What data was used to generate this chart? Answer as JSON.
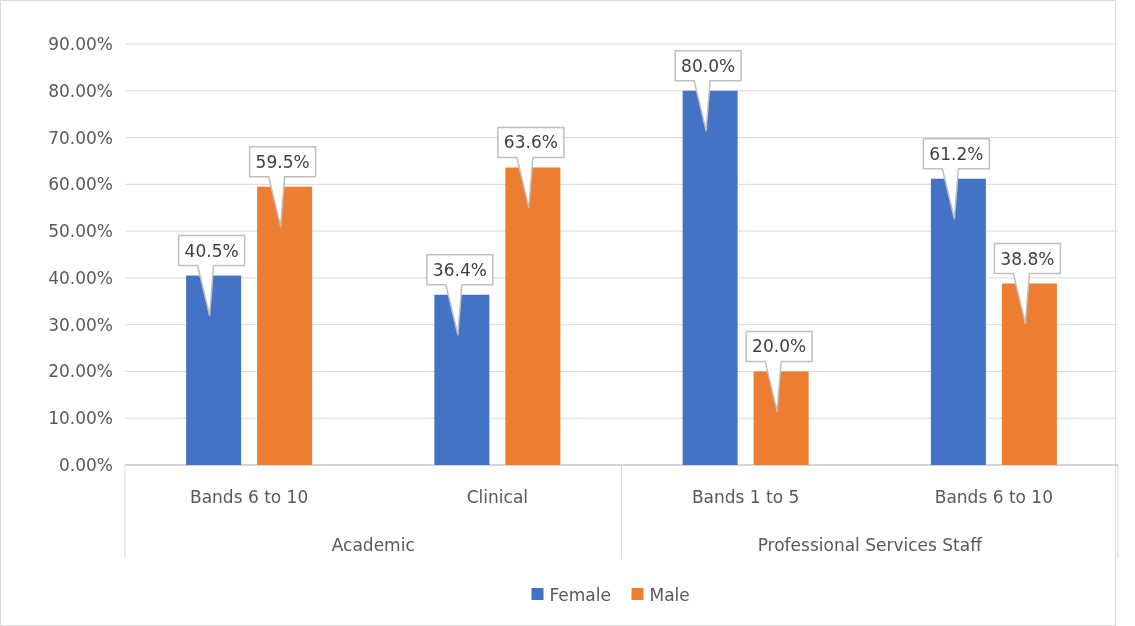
{
  "chart_data": {
    "type": "bar",
    "categories": [
      "Bands 6 to 10",
      "Clinical",
      "Bands 1 to 5",
      "Bands 6 to 10"
    ],
    "annotations": [
      "Academic",
      "Professional Services Staff"
    ],
    "series": [
      {
        "name": "Female",
        "color": "#4472c4",
        "values": [
          40.5,
          36.4,
          80.0,
          61.2
        ],
        "value_labels": [
          "40.5%",
          "36.4%",
          "80.0%",
          "61.2%"
        ]
      },
      {
        "name": "Male",
        "color": "#ed7d31",
        "values": [
          59.5,
          63.6,
          20.0,
          38.8
        ],
        "value_labels": [
          "59.5%",
          "63.6%",
          "20.0%",
          "38.8%"
        ]
      }
    ],
    "ylim": [
      0,
      90
    ],
    "yticks": [
      {
        "value": 0,
        "label": "0.00%"
      },
      {
        "value": 10,
        "label": "10.00%"
      },
      {
        "value": 20,
        "label": "20.00%"
      },
      {
        "value": 30,
        "label": "30.00%"
      },
      {
        "value": 40,
        "label": "40.00%"
      },
      {
        "value": 50,
        "label": "50.00%"
      },
      {
        "value": 60,
        "label": "60.00%"
      },
      {
        "value": 70,
        "label": "70.00%"
      },
      {
        "value": 80,
        "label": "80.00%"
      },
      {
        "value": 90,
        "label": "90.00%"
      }
    ],
    "grid": "y",
    "legend": "bottom"
  }
}
